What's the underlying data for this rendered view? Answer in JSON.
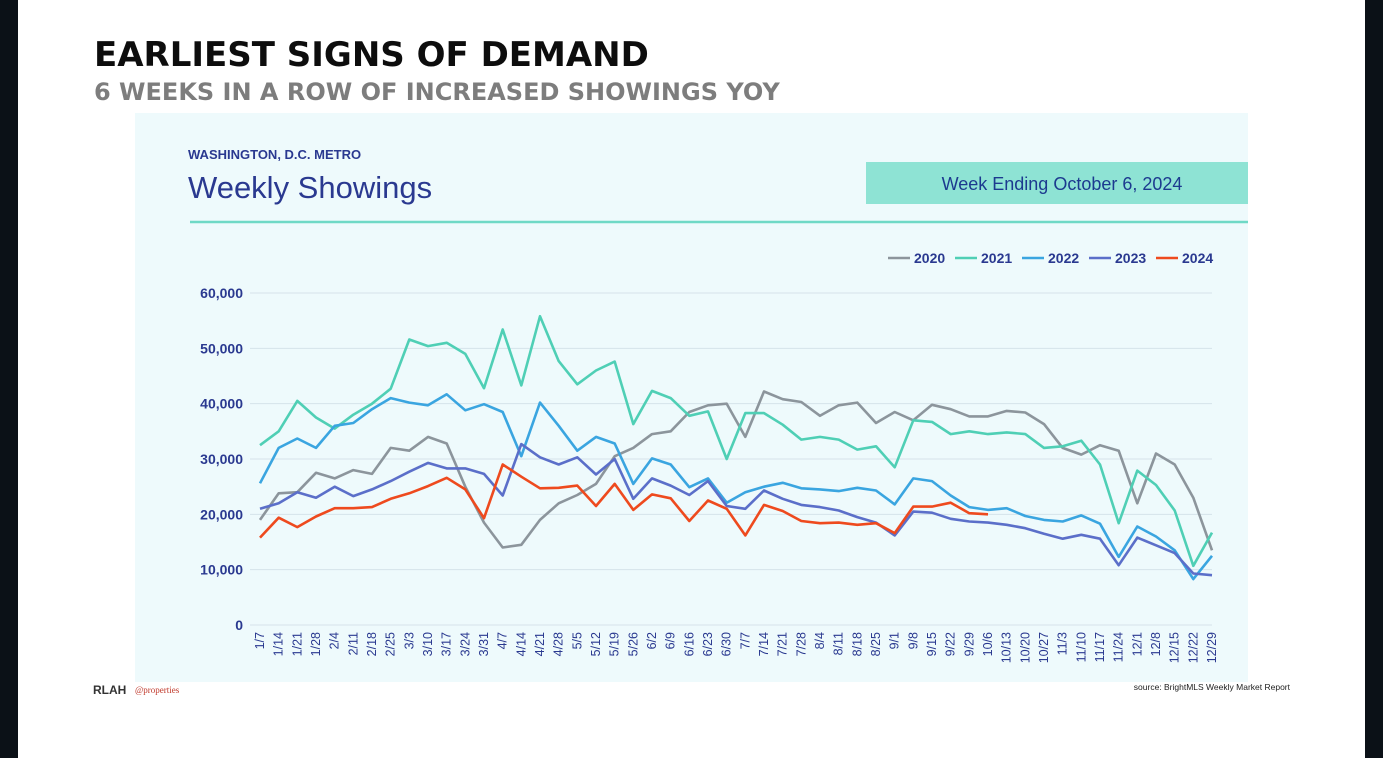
{
  "slide": {
    "title": "EARLIEST SIGNS OF DEMAND",
    "subtitle": "6 WEEKS IN A ROW OF INCREASED SHOWINGS YOY",
    "source": "source: BrightMLS Weekly Market Report",
    "logo_left": "RLAH",
    "logo_right": "@properties"
  },
  "chart_data": {
    "type": "line",
    "region": "WASHINGTON, D.C. METRO",
    "title": "Weekly Showings",
    "banner": "Week Ending October 6, 2024",
    "legend": "top-right",
    "grid": true,
    "categories": [
      "1/7",
      "1/14",
      "1/21",
      "1/28",
      "2/4",
      "2/11",
      "2/18",
      "2/25",
      "3/3",
      "3/10",
      "3/17",
      "3/24",
      "3/31",
      "4/7",
      "4/14",
      "4/21",
      "4/28",
      "5/5",
      "5/12",
      "5/19",
      "5/26",
      "6/2",
      "6/9",
      "6/16",
      "6/23",
      "6/30",
      "7/7",
      "7/14",
      "7/21",
      "7/28",
      "8/4",
      "8/11",
      "8/18",
      "8/25",
      "9/1",
      "9/8",
      "9/15",
      "9/22",
      "9/29",
      "10/6",
      "10/13",
      "10/20",
      "10/27",
      "11/3",
      "11/10",
      "11/17",
      "11/24",
      "12/1",
      "12/8",
      "12/15",
      "12/22",
      "12/29"
    ],
    "ylim": [
      0,
      60000
    ],
    "yticks": [
      0,
      {
        "value": 10000,
        "label": "10,000"
      },
      {
        "value": 20000,
        "label": "20,000"
      },
      {
        "value": 30000,
        "label": "30,000"
      },
      {
        "value": 40000,
        "label": "40,000"
      },
      {
        "value": 50000,
        "label": "50,000"
      },
      {
        "value": 60000,
        "label": "60,000"
      }
    ],
    "series": [
      {
        "name": "2020",
        "color": "#8c959c",
        "values": [
          19000,
          23800,
          24000,
          27500,
          26500,
          28000,
          27300,
          32000,
          31500,
          34000,
          32800,
          25000,
          18500,
          14000,
          14500,
          19000,
          22000,
          23500,
          25500,
          30500,
          32000,
          34500,
          35000,
          38500,
          39700,
          40000,
          34000,
          42200,
          40800,
          40300,
          37800,
          39700,
          40200,
          36500,
          38500,
          37000,
          39800,
          39000,
          37700,
          37700,
          38700,
          38400,
          36300,
          32000,
          30800,
          32500,
          31500,
          22000,
          31000,
          29000,
          23000,
          13500
        ]
      },
      {
        "name": "2021",
        "color": "#4fcfb5",
        "values": [
          32500,
          35000,
          40500,
          37500,
          35500,
          38000,
          40000,
          42700,
          51600,
          50400,
          51000,
          49000,
          42800,
          53400,
          43300,
          55800,
          47700,
          43500,
          46000,
          47600,
          36300,
          42300,
          41000,
          37800,
          38600,
          30000,
          38300,
          38300,
          36200,
          33500,
          34000,
          33500,
          31700,
          32300,
          28500,
          37000,
          36700,
          34500,
          35000,
          34500,
          34800,
          34500,
          32000,
          32300,
          33300,
          29000,
          18400,
          27900,
          25300,
          20700,
          10700,
          16700
        ]
      },
      {
        "name": "2022",
        "color": "#3aa5e0",
        "values": [
          25600,
          32000,
          33700,
          32000,
          36000,
          36500,
          39000,
          41000,
          40200,
          39700,
          41700,
          38800,
          39900,
          38500,
          30500,
          40200,
          36000,
          31500,
          34000,
          32800,
          25500,
          30100,
          29000,
          24900,
          26500,
          22100,
          24000,
          25000,
          25700,
          24700,
          24500,
          24200,
          24800,
          24300,
          21800,
          26500,
          26000,
          23400,
          21300,
          20800,
          21100,
          19700,
          19000,
          18700,
          19800,
          18300,
          12300,
          17800,
          16000,
          13500,
          8300,
          12500
        ]
      },
      {
        "name": "2023",
        "color": "#5b6fc9",
        "values": [
          21000,
          22000,
          24000,
          23000,
          25000,
          23300,
          24500,
          26000,
          27700,
          29300,
          28300,
          28300,
          27300,
          23400,
          32700,
          30300,
          29000,
          30300,
          27200,
          30000,
          22800,
          26500,
          25200,
          23500,
          26000,
          21500,
          21000,
          24300,
          22800,
          21700,
          21300,
          20700,
          19500,
          18500,
          16200,
          20500,
          20300,
          19200,
          18700,
          18500,
          18100,
          17500,
          16500,
          15600,
          16300,
          15600,
          10800,
          15800,
          14400,
          13000,
          9300,
          9000
        ]
      },
      {
        "name": "2024",
        "color": "#ee4a1e",
        "values": [
          15800,
          19400,
          17700,
          19600,
          21100,
          21100,
          21300,
          22800,
          23800,
          25100,
          26600,
          24500,
          19300,
          29000,
          26800,
          24700,
          24800,
          25200,
          21500,
          25500,
          20800,
          23600,
          22900,
          18800,
          22500,
          21000,
          16200,
          21700,
          20600,
          18800,
          18400,
          18500,
          18100,
          18400,
          16600,
          21400,
          21400,
          22100,
          20200,
          20000,
          null,
          null,
          null,
          null,
          null,
          null,
          null,
          null,
          null,
          null,
          null,
          null
        ]
      }
    ]
  }
}
